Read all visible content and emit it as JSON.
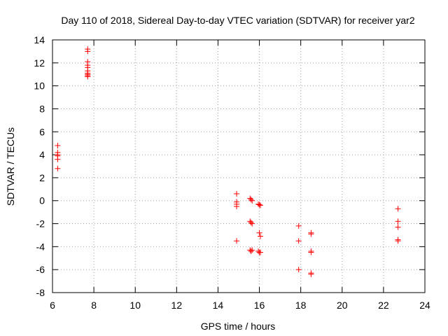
{
  "chart_data": {
    "type": "scatter",
    "title": "Day 110 of 2018, Sidereal Day-to-day VTEC variation (SDTVAR) for receiver yar2",
    "xlabel": "GPS time / hours",
    "ylabel": "SDTVAR / TECUs",
    "xlim": [
      6,
      24
    ],
    "ylim": [
      -8,
      14
    ],
    "xticks": [
      6,
      8,
      10,
      12,
      14,
      16,
      18,
      20,
      22,
      24
    ],
    "yticks": [
      -8,
      -6,
      -4,
      -2,
      0,
      2,
      4,
      6,
      8,
      10,
      12,
      14
    ],
    "grid": true,
    "marker": "+",
    "series": [
      {
        "name": "yar2",
        "color": "#ff0000",
        "x": [
          6.25,
          6.25,
          6.25,
          6.25,
          6.25,
          6.25,
          7.7,
          7.7,
          7.7,
          7.7,
          7.7,
          7.7,
          7.7,
          7.7,
          7.7,
          7.7,
          14.9,
          14.9,
          14.9,
          14.9,
          14.9,
          15.55,
          15.6,
          15.65,
          15.55,
          15.6,
          15.65,
          15.55,
          15.6,
          15.65,
          15.95,
          16.0,
          16.05,
          16.0,
          16.05,
          15.95,
          16.0,
          16.05,
          17.9,
          17.9,
          17.9,
          18.5,
          18.5,
          18.5,
          18.5,
          18.5,
          18.5,
          22.7,
          22.7,
          22.7,
          22.7,
          22.7
        ],
        "y": [
          4.8,
          4.2,
          4.0,
          3.9,
          3.6,
          2.8,
          13.2,
          13.0,
          12.1,
          11.8,
          11.6,
          11.3,
          11.1,
          11.0,
          10.9,
          10.8,
          0.6,
          -0.1,
          -0.3,
          -0.5,
          -3.5,
          0.2,
          0.1,
          0.0,
          -1.8,
          -1.9,
          -2.0,
          -4.3,
          -4.4,
          -4.3,
          -0.3,
          -0.35,
          -0.4,
          -2.8,
          -3.1,
          -4.4,
          -4.5,
          -4.5,
          -2.2,
          -3.5,
          -6.0,
          -2.8,
          -2.9,
          -4.4,
          -4.5,
          -6.3,
          -6.4,
          -0.7,
          -1.8,
          -2.3,
          -3.4,
          -3.5
        ]
      }
    ]
  }
}
